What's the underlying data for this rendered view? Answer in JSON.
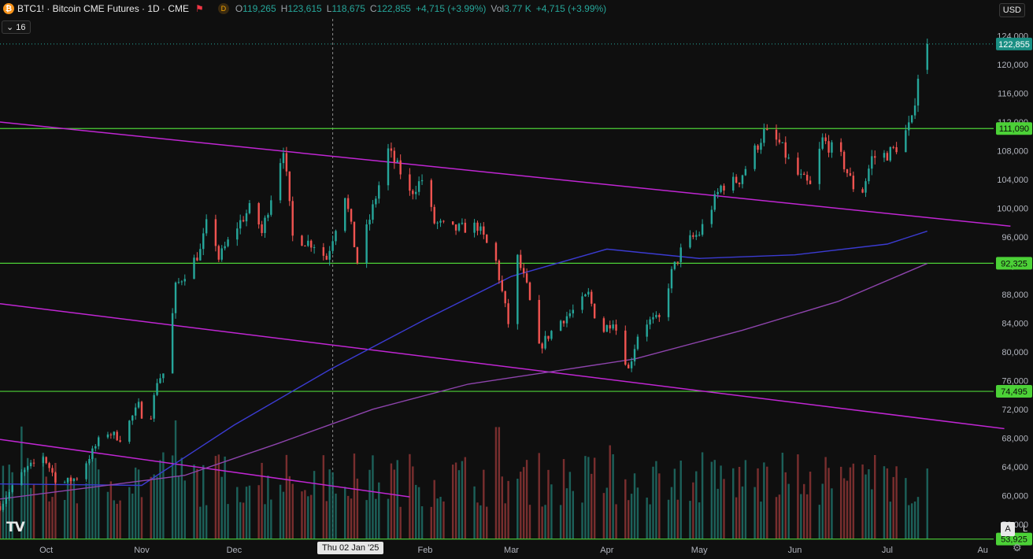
{
  "header": {
    "symbol": "BTC1!",
    "title": "BTC1! · Bitcoin CME Futures · 1D · CME",
    "badge_letter": "D",
    "ohlc": [
      {
        "key": "O",
        "value": "119,265"
      },
      {
        "key": "H",
        "value": "123,615"
      },
      {
        "key": "L",
        "value": "118,675"
      },
      {
        "key": "C",
        "value": "122,855"
      },
      {
        "key": "",
        "value": "+4,715 (+3.99%)"
      },
      {
        "key": "Vol",
        "value": "3.77 K"
      },
      {
        "key": "",
        "value": "+4,715 (+3.99%)"
      }
    ],
    "currency": "USD",
    "indicators_label": "16"
  },
  "footer": {
    "crosshair_date": "Thu 02 Jan '25",
    "scale_buttons": [
      "A",
      "L"
    ]
  },
  "colors": {
    "background": "#0f0f0f",
    "up": "#26a69a",
    "down": "#ef5350",
    "support": "#4cd137",
    "trend": "#c026d3",
    "ma_blue": "#3b3bd1",
    "ma_purple": "#8e44ad"
  },
  "chart_data": {
    "type": "candlestick",
    "timeframe": "1D",
    "xlabel": "",
    "ylabel": "",
    "x_ticks": [
      "Oct",
      "Nov",
      "Dec",
      "Thu 02 Jan '25",
      "Feb",
      "Mar",
      "Apr",
      "May",
      "Jun",
      "Jul",
      "Au"
    ],
    "y_ticks": [
      124000,
      120000,
      116000,
      112000,
      108000,
      104000,
      100000,
      96000,
      92000,
      88000,
      84000,
      80000,
      76000,
      72000,
      68000,
      64000,
      60000,
      56000
    ],
    "ylim": [
      54000,
      124600
    ],
    "price_labels": [
      {
        "value": 122855,
        "label": "122,855",
        "kind": "last"
      },
      {
        "value": 111090,
        "label": "111,090",
        "kind": "level"
      },
      {
        "value": 92325,
        "label": "92,325",
        "kind": "level"
      },
      {
        "value": 74495,
        "label": "74,495",
        "kind": "level"
      },
      {
        "value": 53925,
        "label": "53,925",
        "kind": "level"
      }
    ],
    "trend_lines": [
      {
        "points": [
          [
            "2024-09-16",
            112000
          ],
          [
            "2025-08-10",
            97500
          ]
        ]
      },
      {
        "points": [
          [
            "2024-09-16",
            86700
          ],
          [
            "2025-08-08",
            69300
          ]
        ]
      },
      {
        "points": [
          [
            "2024-09-16",
            67800
          ],
          [
            "2025-01-27",
            59800
          ]
        ]
      }
    ],
    "moving_averages": [
      {
        "color": "blue",
        "points": [
          [
            "2024-09-16",
            61600
          ],
          [
            "2024-11-01",
            61400
          ],
          [
            "2024-12-01",
            69800
          ],
          [
            "2025-01-01",
            77500
          ],
          [
            "2025-02-01",
            84500
          ],
          [
            "2025-03-01",
            90500
          ],
          [
            "2025-04-01",
            94300
          ],
          [
            "2025-05-01",
            93000
          ],
          [
            "2025-06-01",
            93500
          ],
          [
            "2025-07-01",
            95000
          ],
          [
            "2025-07-14",
            96800
          ]
        ]
      },
      {
        "color": "purple",
        "points": [
          [
            "2024-09-16",
            59500
          ],
          [
            "2024-11-15",
            62800
          ],
          [
            "2024-12-15",
            67200
          ],
          [
            "2025-01-15",
            72000
          ],
          [
            "2025-02-15",
            75500
          ],
          [
            "2025-03-15",
            77300
          ],
          [
            "2025-04-10",
            79000
          ],
          [
            "2025-05-15",
            83000
          ],
          [
            "2025-06-15",
            87000
          ],
          [
            "2025-07-14",
            92300
          ]
        ]
      }
    ],
    "price_anchors": [
      [
        "2024-09-16",
        58500
      ],
      [
        "2024-09-23",
        63000
      ],
      [
        "2024-09-30",
        65500
      ],
      [
        "2024-10-05",
        61500
      ],
      [
        "2024-10-11",
        62500
      ],
      [
        "2024-10-20",
        69000
      ],
      [
        "2024-10-25",
        68000
      ],
      [
        "2024-10-31",
        72500
      ],
      [
        "2024-11-03",
        69000
      ],
      [
        "2024-11-06",
        76000
      ],
      [
        "2024-11-09",
        77500
      ],
      [
        "2024-11-12",
        89000
      ],
      [
        "2024-11-20",
        94000
      ],
      [
        "2024-11-23",
        99500
      ],
      [
        "2024-11-26",
        93000
      ],
      [
        "2024-12-02",
        97500
      ],
      [
        "2024-12-07",
        100500
      ],
      [
        "2024-12-10",
        96500
      ],
      [
        "2024-12-17",
        108500
      ],
      [
        "2024-12-20",
        96000
      ],
      [
        "2024-12-27",
        95000
      ],
      [
        "2024-12-31",
        93000
      ],
      [
        "2025-01-06",
        102000
      ],
      [
        "2025-01-10",
        92500
      ],
      [
        "2025-01-15",
        100000
      ],
      [
        "2025-01-20",
        108000
      ],
      [
        "2025-01-24",
        105000
      ],
      [
        "2025-01-27",
        102000
      ],
      [
        "2025-01-31",
        104000
      ],
      [
        "2025-02-04",
        98000
      ],
      [
        "2025-02-10",
        97000
      ],
      [
        "2025-02-18",
        97500
      ],
      [
        "2025-02-24",
        92500
      ],
      [
        "2025-02-28",
        84000
      ],
      [
        "2025-03-03",
        93000
      ],
      [
        "2025-03-06",
        89000
      ],
      [
        "2025-03-10",
        80500
      ],
      [
        "2025-03-16",
        84000
      ],
      [
        "2025-03-22",
        86000
      ],
      [
        "2025-03-26",
        88000
      ],
      [
        "2025-03-30",
        82500
      ],
      [
        "2025-04-03",
        84500
      ],
      [
        "2025-04-08",
        77500
      ],
      [
        "2025-04-12",
        84000
      ],
      [
        "2025-04-18",
        84500
      ],
      [
        "2025-04-22",
        91000
      ],
      [
        "2025-04-26",
        95000
      ],
      [
        "2025-05-01",
        96500
      ],
      [
        "2025-05-08",
        103000
      ],
      [
        "2025-05-14",
        104000
      ],
      [
        "2025-05-22",
        110500
      ],
      [
        "2025-05-27",
        109000
      ],
      [
        "2025-06-01",
        105000
      ],
      [
        "2025-06-06",
        103000
      ],
      [
        "2025-06-10",
        109500
      ],
      [
        "2025-06-16",
        107000
      ],
      [
        "2025-06-22",
        101000
      ],
      [
        "2025-06-26",
        107000
      ],
      [
        "2025-07-01",
        107500
      ],
      [
        "2025-07-04",
        108500
      ],
      [
        "2025-07-09",
        112000
      ],
      [
        "2025-07-11",
        118500
      ],
      [
        "2025-07-14",
        122855
      ]
    ]
  }
}
